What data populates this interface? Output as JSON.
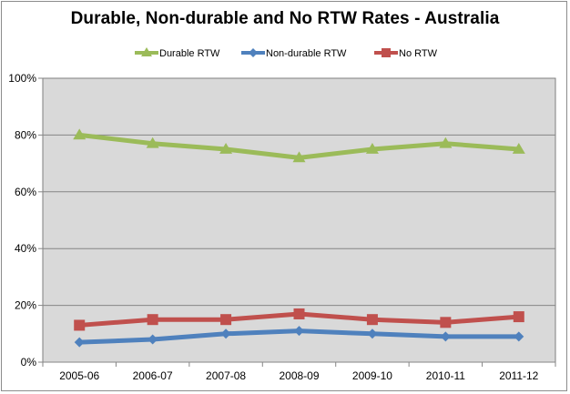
{
  "chart_data": {
    "type": "line",
    "title": "Durable, Non-durable  and No RTW Rates - Australia",
    "xlabel": "",
    "ylabel": "",
    "categories": [
      "2005-06",
      "2006-07",
      "2007-08",
      "2008-09",
      "2009-10",
      "2010-11",
      "2011-12"
    ],
    "ylim": [
      0,
      100
    ],
    "yticks": [
      0,
      20,
      40,
      60,
      80,
      100
    ],
    "ytick_labels": [
      "0%",
      "20%",
      "40%",
      "60%",
      "80%",
      "100%"
    ],
    "grid": true,
    "legend_position": "top",
    "series": [
      {
        "name": "Durable RTW",
        "color": "#9bbb59",
        "marker": "triangle",
        "values": [
          80,
          77,
          75,
          72,
          75,
          77,
          75
        ]
      },
      {
        "name": "Non-durable RTW",
        "color": "#4f81bd",
        "marker": "diamond",
        "values": [
          7,
          8,
          10,
          11,
          10,
          9,
          9
        ]
      },
      {
        "name": "No RTW",
        "color": "#c0504d",
        "marker": "square",
        "values": [
          13,
          15,
          15,
          17,
          15,
          14,
          16
        ]
      }
    ]
  }
}
